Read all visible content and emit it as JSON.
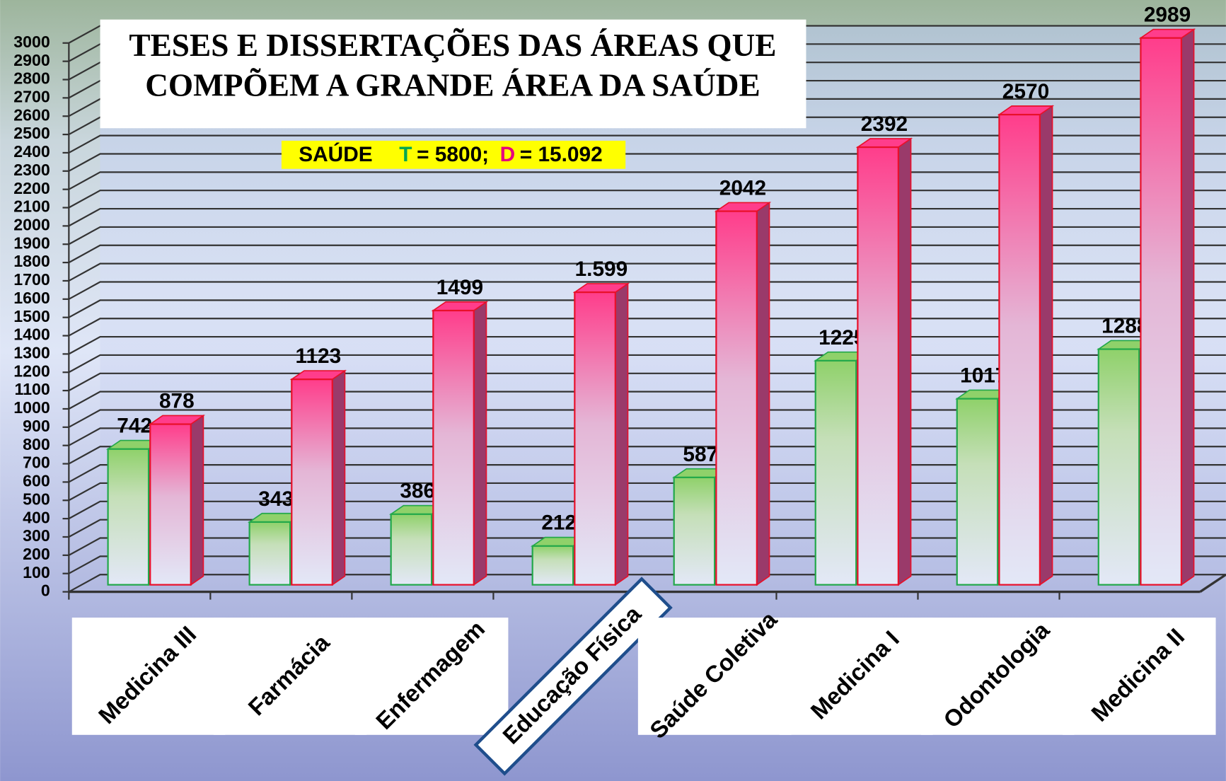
{
  "chart_data": {
    "type": "bar",
    "title": [
      "TESES E DISSERTAÇÕES DAS ÁREAS QUE",
      "COMPÕEM A GRANDE ÁREA DA SAÚDE"
    ],
    "annotation": {
      "label": "SAÚDE",
      "t": "T",
      "t_text": "= 5800;",
      "d": "D",
      "d_text": "= 15.092",
      "t_color": "#00a651",
      "d_color": "#e6007e",
      "background": "#ffff00"
    },
    "categories": [
      "Medicina III",
      "Farmácia",
      "Enfermagem",
      "Educação Física",
      "Saúde Coletiva",
      "Medicina I",
      "Odontologia",
      "Medicina II"
    ],
    "series": [
      {
        "color": "#8fd16a",
        "stroke": "#22a84a",
        "values": [
          742,
          343,
          386,
          212,
          587,
          1225,
          1017,
          1288
        ]
      },
      {
        "color": "#ff3d8b",
        "stroke": "#e8102a",
        "values": [
          878,
          1123,
          1499,
          1599,
          2042,
          2392,
          2570,
          2989
        ],
        "value_labels": [
          "878",
          "1123",
          "1499",
          "1.599",
          "2042",
          "2392",
          "2570",
          "2989"
        ]
      }
    ],
    "ylim": [
      0,
      3000
    ],
    "yticks": [
      0,
      100,
      200,
      300,
      400,
      500,
      600,
      700,
      800,
      900,
      1000,
      1100,
      1200,
      1300,
      1400,
      1500,
      1600,
      1700,
      1800,
      1900,
      2000,
      2100,
      2200,
      2300,
      2400,
      2500,
      2600,
      2700,
      2800,
      2900,
      3000
    ],
    "grid": true
  }
}
